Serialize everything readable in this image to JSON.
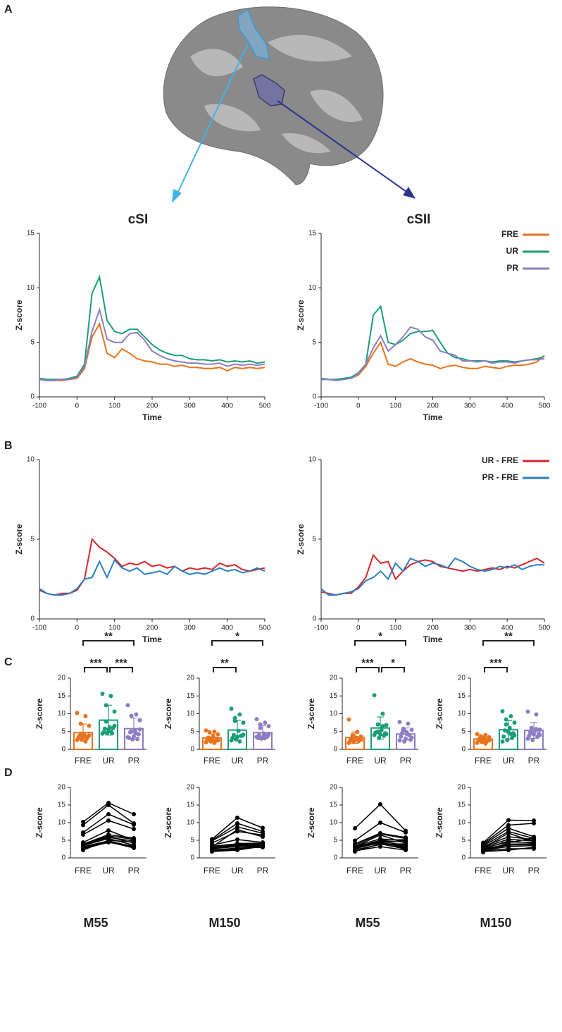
{
  "panel_labels": [
    "A",
    "B",
    "C",
    "D"
  ],
  "chart_data": [
    {
      "type": "line",
      "title": "cSI",
      "xlabel": "Time",
      "ylabel": "Z-score",
      "x": [
        -100,
        -80,
        -60,
        -40,
        -20,
        0,
        20,
        40,
        60,
        80,
        100,
        120,
        140,
        160,
        180,
        200,
        220,
        240,
        260,
        280,
        300,
        320,
        340,
        360,
        380,
        400,
        420,
        440,
        460,
        480,
        500
      ],
      "xlim": [
        -100,
        500
      ],
      "xticks": [
        -100,
        0,
        100,
        200,
        300,
        400,
        500
      ],
      "ylim": [
        0,
        15
      ],
      "yticks": [
        0,
        5,
        10,
        15
      ],
      "series": [
        {
          "color": "#e8731e",
          "values": [
            1.6,
            1.5,
            1.5,
            1.5,
            1.6,
            1.7,
            2.6,
            5.5,
            6.7,
            4.0,
            3.6,
            4.4,
            4.0,
            3.5,
            3.3,
            3.2,
            3.0,
            3.0,
            2.8,
            2.9,
            2.7,
            2.7,
            2.6,
            2.6,
            2.7,
            2.4,
            2.7,
            2.6,
            2.7,
            2.6,
            2.7
          ]
        },
        {
          "color": "#1a9e77",
          "values": [
            1.7,
            1.6,
            1.6,
            1.6,
            1.7,
            1.9,
            3.0,
            9.5,
            11.0,
            7.0,
            6.0,
            5.8,
            6.2,
            6.2,
            5.5,
            4.8,
            4.3,
            4.0,
            3.8,
            3.8,
            3.5,
            3.4,
            3.4,
            3.3,
            3.4,
            3.2,
            3.3,
            3.2,
            3.3,
            3.1,
            3.2
          ]
        },
        {
          "color": "#8c7dc4",
          "values": [
            1.6,
            1.5,
            1.5,
            1.6,
            1.6,
            1.8,
            2.8,
            6.0,
            8.0,
            5.3,
            5.0,
            5.0,
            5.8,
            5.9,
            5.2,
            4.2,
            3.8,
            3.5,
            3.3,
            3.2,
            3.1,
            3.1,
            3.0,
            3.0,
            3.1,
            2.8,
            3.0,
            2.9,
            3.0,
            2.9,
            3.0
          ]
        }
      ]
    },
    {
      "type": "line",
      "title": "cSII",
      "xlabel": "Time",
      "ylabel": "Z-score",
      "legend": "upper right",
      "x": [
        -100,
        -80,
        -60,
        -40,
        -20,
        0,
        20,
        40,
        60,
        80,
        100,
        120,
        140,
        160,
        180,
        200,
        220,
        240,
        260,
        280,
        300,
        320,
        340,
        360,
        380,
        400,
        420,
        440,
        460,
        480,
        500
      ],
      "xlim": [
        -100,
        500
      ],
      "xticks": [
        -100,
        0,
        100,
        200,
        300,
        400,
        500
      ],
      "ylim": [
        0,
        15
      ],
      "yticks": [
        0,
        5,
        10,
        15
      ],
      "series": [
        {
          "name": "FRE",
          "color": "#e8731e",
          "values": [
            1.6,
            1.6,
            1.5,
            1.6,
            1.7,
            2.0,
            2.8,
            4.0,
            5.0,
            3.0,
            2.8,
            3.2,
            3.5,
            3.2,
            3.0,
            2.9,
            2.6,
            2.8,
            2.9,
            2.7,
            2.6,
            2.6,
            2.8,
            2.7,
            2.6,
            2.8,
            2.9,
            2.9,
            3.0,
            3.2,
            3.8
          ]
        },
        {
          "name": "UR",
          "color": "#1a9e77",
          "values": [
            1.7,
            1.6,
            1.6,
            1.7,
            1.8,
            2.2,
            3.0,
            7.5,
            8.3,
            5.0,
            4.8,
            5.2,
            5.8,
            6.0,
            6.0,
            6.1,
            5.0,
            4.0,
            3.6,
            3.5,
            3.3,
            3.3,
            3.3,
            3.2,
            3.3,
            3.3,
            3.2,
            3.3,
            3.4,
            3.5,
            3.7
          ]
        },
        {
          "name": "PR",
          "color": "#8c7dc4",
          "values": [
            1.6,
            1.6,
            1.5,
            1.6,
            1.7,
            2.1,
            3.0,
            4.5,
            5.6,
            4.2,
            4.8,
            5.5,
            6.4,
            6.2,
            5.5,
            5.2,
            4.2,
            4.0,
            3.8,
            3.3,
            3.3,
            3.2,
            3.3,
            3.1,
            3.2,
            3.2,
            3.1,
            3.3,
            3.4,
            3.4,
            3.5
          ]
        }
      ]
    },
    {
      "type": "line",
      "xlabel": "Time",
      "ylabel": "Z-score",
      "x": [
        -100,
        -80,
        -60,
        -40,
        -20,
        0,
        20,
        40,
        60,
        80,
        100,
        120,
        140,
        160,
        180,
        200,
        220,
        240,
        260,
        280,
        300,
        320,
        340,
        360,
        380,
        400,
        420,
        440,
        460,
        480,
        500
      ],
      "xlim": [
        -100,
        500
      ],
      "xticks": [
        -100,
        0,
        100,
        200,
        300,
        400,
        500
      ],
      "ylim": [
        0,
        10
      ],
      "yticks": [
        0,
        5,
        10
      ],
      "series": [
        {
          "color": "#d7262b",
          "values": [
            1.8,
            1.6,
            1.5,
            1.6,
            1.6,
            1.8,
            2.5,
            5.0,
            4.5,
            4.2,
            3.8,
            3.3,
            3.5,
            3.4,
            3.6,
            3.3,
            3.4,
            3.2,
            3.3,
            3.0,
            3.2,
            3.1,
            3.2,
            3.1,
            3.5,
            3.3,
            3.4,
            3.1,
            3.0,
            3.1,
            3.2
          ]
        },
        {
          "color": "#2b7fc1",
          "values": [
            1.9,
            1.6,
            1.5,
            1.5,
            1.6,
            1.9,
            2.5,
            2.6,
            3.6,
            2.6,
            3.7,
            3.2,
            3.0,
            3.2,
            2.8,
            2.9,
            3.0,
            2.8,
            3.3,
            3.0,
            2.8,
            2.9,
            2.8,
            3.0,
            3.2,
            3.0,
            3.1,
            2.9,
            3.0,
            3.2,
            3.0
          ]
        }
      ]
    },
    {
      "type": "line",
      "xlabel": "Time",
      "ylabel": "Z-score",
      "legend": "upper right",
      "x": [
        -100,
        -80,
        -60,
        -40,
        -20,
        0,
        20,
        40,
        60,
        80,
        100,
        120,
        140,
        160,
        180,
        200,
        220,
        240,
        260,
        280,
        300,
        320,
        340,
        360,
        380,
        400,
        420,
        440,
        460,
        480,
        500
      ],
      "xlim": [
        -100,
        500
      ],
      "xticks": [
        -100,
        0,
        100,
        200,
        300,
        400,
        500
      ],
      "ylim": [
        0,
        10
      ],
      "yticks": [
        0,
        5,
        10
      ],
      "series": [
        {
          "name": "UR - FRE",
          "color": "#d7262b",
          "values": [
            1.7,
            1.6,
            1.5,
            1.6,
            1.6,
            2.0,
            2.6,
            4.0,
            3.5,
            3.6,
            2.5,
            3.0,
            3.4,
            3.6,
            3.7,
            3.6,
            3.3,
            3.2,
            3.1,
            3.0,
            3.1,
            3.0,
            3.1,
            3.2,
            3.1,
            3.3,
            3.2,
            3.4,
            3.6,
            3.8,
            3.5
          ]
        },
        {
          "name": "PR - FRE",
          "color": "#2b7fc1",
          "values": [
            1.9,
            1.5,
            1.5,
            1.6,
            1.7,
            1.9,
            2.4,
            2.6,
            3.0,
            2.5,
            3.5,
            3.0,
            3.8,
            3.6,
            3.3,
            3.5,
            3.4,
            3.2,
            3.8,
            3.6,
            3.3,
            3.1,
            3.0,
            3.1,
            3.3,
            3.2,
            3.4,
            3.1,
            3.3,
            3.4,
            3.4
          ]
        }
      ]
    },
    {
      "type": "bar",
      "ylabel": "Z-score",
      "categories": [
        "FRE",
        "UR",
        "PR"
      ],
      "colors": [
        "#e8731e",
        "#1a9e77",
        "#8c7dc4"
      ],
      "values": [
        4.7,
        8.2,
        5.8
      ],
      "errors": [
        2.4,
        4.2,
        3.0
      ],
      "ylim": [
        0,
        20
      ],
      "yticks": [
        0,
        5,
        10,
        15,
        20
      ],
      "points": [
        [
          10.2,
          9.3,
          7.2,
          6.6,
          4.0,
          3.8,
          3.6,
          3.5,
          3.2,
          3.0,
          2.8,
          2.6,
          2.2,
          4.4,
          3.9
        ],
        [
          15.6,
          15.0,
          12.4,
          10.6,
          6.2,
          5.8,
          6.0,
          5.5,
          4.8,
          4.5,
          4.6,
          4.4,
          5.0,
          7.8,
          6.6
        ],
        [
          12.4,
          9.8,
          9.4,
          8.2,
          5.3,
          4.8,
          4.2,
          3.6,
          3.2,
          2.9,
          2.8,
          3.4,
          4.5,
          5.0,
          5.6
        ]
      ],
      "annotations": [
        {
          "between": [
            "FRE",
            "PR"
          ],
          "text": "**"
        },
        {
          "between": [
            "FRE",
            "UR"
          ],
          "text": "***"
        },
        {
          "between": [
            "UR",
            "PR"
          ],
          "text": "***"
        }
      ]
    },
    {
      "type": "bar",
      "ylabel": "Z-score",
      "categories": [
        "FRE",
        "UR",
        "PR"
      ],
      "colors": [
        "#e8731e",
        "#1a9e77",
        "#8c7dc4"
      ],
      "values": [
        3.2,
        5.4,
        4.7
      ],
      "errors": [
        1.1,
        2.8,
        2.0
      ],
      "ylim": [
        0,
        20
      ],
      "yticks": [
        0,
        5,
        10,
        15,
        20
      ],
      "points": [
        [
          5.3,
          5.0,
          4.8,
          4.2,
          3.6,
          3.3,
          3.0,
          2.8,
          2.6,
          2.4,
          2.2,
          2.0,
          1.8,
          3.1,
          2.5
        ],
        [
          11.4,
          9.8,
          8.8,
          7.5,
          5.2,
          4.0,
          3.8,
          3.5,
          3.2,
          3.8,
          2.8,
          2.5,
          2.2,
          8.0,
          4.1
        ],
        [
          8.5,
          7.5,
          7.0,
          6.5,
          4.4,
          4.0,
          3.6,
          3.4,
          3.2,
          3.8,
          3.0,
          3.5,
          3.3,
          6.0,
          4.2
        ]
      ],
      "annotations": [
        {
          "between": [
            "FRE",
            "PR"
          ],
          "text": "*"
        },
        {
          "between": [
            "FRE",
            "UR"
          ],
          "text": "**"
        }
      ]
    },
    {
      "type": "bar",
      "ylabel": "Z-score",
      "categories": [
        "FRE",
        "UR",
        "PR"
      ],
      "colors": [
        "#e8731e",
        "#1a9e77",
        "#8c7dc4"
      ],
      "values": [
        3.3,
        6.0,
        4.3
      ],
      "errors": [
        1.6,
        3.1,
        1.7
      ],
      "ylim": [
        0,
        20
      ],
      "yticks": [
        0,
        5,
        10,
        15,
        20
      ],
      "points": [
        [
          8.4,
          4.9,
          4.0,
          3.6,
          3.3,
          3.1,
          3.0,
          2.8,
          2.5,
          2.3,
          2.0,
          1.8,
          3.2,
          2.9,
          2.7
        ],
        [
          15.2,
          10.0,
          7.0,
          6.8,
          5.4,
          4.8,
          4.5,
          4.2,
          4.7,
          3.8,
          3.2,
          4.0,
          6.5,
          5.0,
          4.3
        ],
        [
          7.7,
          7.2,
          5.8,
          5.5,
          4.8,
          4.5,
          2.7,
          3.0,
          3.6,
          4.0,
          2.2,
          2.5,
          4.2,
          5.2,
          3.3
        ]
      ],
      "annotations": [
        {
          "between": [
            "FRE",
            "PR"
          ],
          "text": "*"
        },
        {
          "between": [
            "FRE",
            "UR"
          ],
          "text": "***"
        },
        {
          "between": [
            "UR",
            "PR"
          ],
          "text": "*"
        }
      ]
    },
    {
      "type": "bar",
      "ylabel": "Z-score",
      "categories": [
        "FRE",
        "UR",
        "PR"
      ],
      "colors": [
        "#e8731e",
        "#1a9e77",
        "#8c7dc4"
      ],
      "values": [
        2.9,
        5.5,
        5.3
      ],
      "errors": [
        0.9,
        2.6,
        2.2
      ],
      "ylim": [
        0,
        20
      ],
      "yticks": [
        0,
        5,
        10,
        15,
        20
      ],
      "points": [
        [
          4.3,
          4.0,
          3.7,
          3.4,
          3.2,
          3.0,
          2.8,
          2.6,
          2.4,
          2.2,
          2.0,
          1.8,
          1.6,
          2.9,
          2.5
        ],
        [
          10.7,
          9.3,
          8.4,
          7.5,
          6.0,
          5.3,
          4.5,
          4.8,
          3.6,
          3.2,
          2.6,
          2.2,
          4.3,
          7.0,
          3.9
        ],
        [
          10.6,
          9.8,
          6.0,
          5.5,
          5.2,
          4.8,
          4.4,
          4.2,
          3.8,
          3.5,
          2.6,
          3.0,
          5.7,
          4.6,
          4.0
        ]
      ],
      "annotations": [
        {
          "between": [
            "FRE",
            "PR"
          ],
          "text": "**"
        },
        {
          "between": [
            "FRE",
            "UR"
          ],
          "text": "***"
        }
      ]
    },
    {
      "type": "paired",
      "ylabel": "Z-score",
      "categories": [
        "FRE",
        "UR",
        "PR"
      ],
      "ylim": [
        0,
        20
      ],
      "yticks": [
        0,
        5,
        10,
        15,
        20
      ],
      "caption": "M55"
    },
    {
      "type": "paired",
      "ylabel": "Z-score",
      "categories": [
        "FRE",
        "UR",
        "PR"
      ],
      "ylim": [
        0,
        20
      ],
      "yticks": [
        0,
        5,
        10,
        15,
        20
      ],
      "caption": "M150"
    },
    {
      "type": "paired",
      "ylabel": "Z-score",
      "categories": [
        "FRE",
        "UR",
        "PR"
      ],
      "ylim": [
        0,
        20
      ],
      "yticks": [
        0,
        5,
        10,
        15,
        20
      ],
      "caption": "M55"
    },
    {
      "type": "paired",
      "ylabel": "Z-score",
      "categories": [
        "FRE",
        "UR",
        "PR"
      ],
      "ylim": [
        0,
        20
      ],
      "yticks": [
        0,
        5,
        10,
        15,
        20
      ],
      "caption": "M150"
    }
  ]
}
